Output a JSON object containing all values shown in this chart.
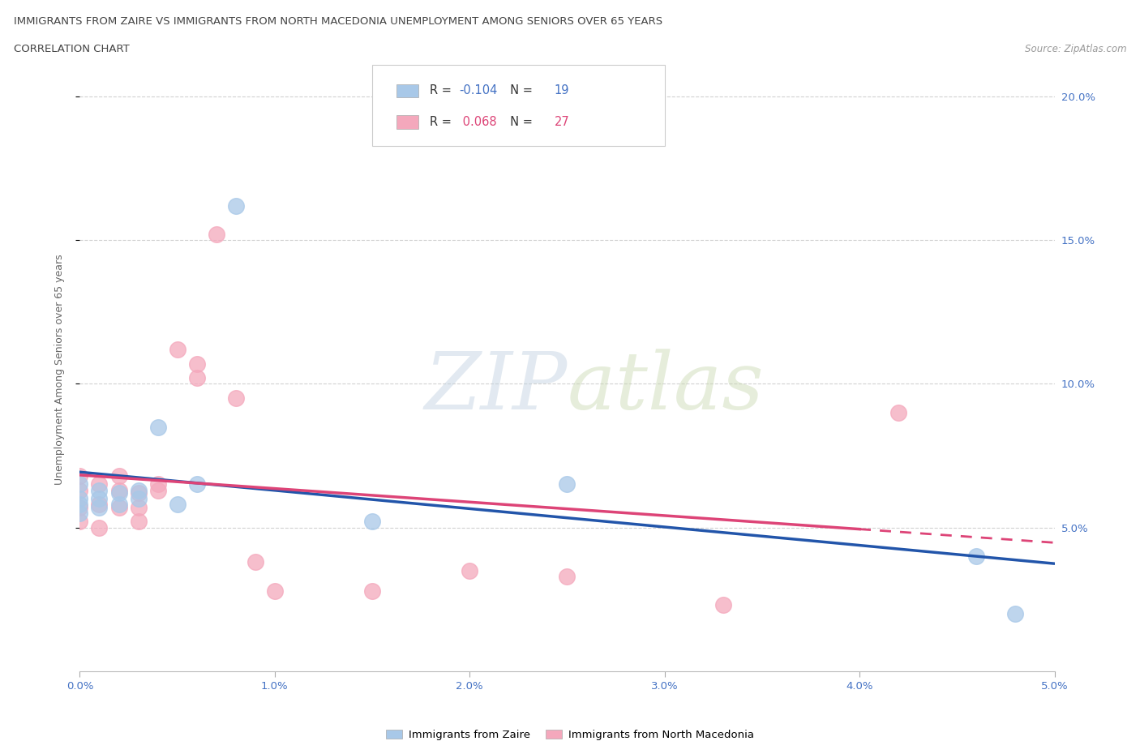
{
  "title_line1": "IMMIGRANTS FROM ZAIRE VS IMMIGRANTS FROM NORTH MACEDONIA UNEMPLOYMENT AMONG SENIORS OVER 65 YEARS",
  "title_line2": "CORRELATION CHART",
  "source": "Source: ZipAtlas.com",
  "ylabel": "Unemployment Among Seniors over 65 years",
  "xlim": [
    0.0,
    0.05
  ],
  "ylim": [
    0.0,
    0.21
  ],
  "yticks": [
    0.05,
    0.1,
    0.15,
    0.2
  ],
  "xticks": [
    0.0,
    0.01,
    0.02,
    0.03,
    0.04,
    0.05
  ],
  "zaire_R": -0.104,
  "zaire_N": 19,
  "macedonia_R": 0.068,
  "macedonia_N": 27,
  "zaire_color": "#A8C8E8",
  "macedonia_color": "#F4A8BC",
  "zaire_line_color": "#2255AA",
  "macedonia_line_color": "#DD4477",
  "zaire_points": [
    [
      0.0,
      0.065
    ],
    [
      0.0,
      0.06
    ],
    [
      0.0,
      0.058
    ],
    [
      0.0,
      0.055
    ],
    [
      0.001,
      0.063
    ],
    [
      0.001,
      0.06
    ],
    [
      0.001,
      0.057
    ],
    [
      0.002,
      0.062
    ],
    [
      0.002,
      0.058
    ],
    [
      0.003,
      0.063
    ],
    [
      0.003,
      0.06
    ],
    [
      0.004,
      0.085
    ],
    [
      0.005,
      0.058
    ],
    [
      0.006,
      0.065
    ],
    [
      0.008,
      0.162
    ],
    [
      0.015,
      0.052
    ],
    [
      0.025,
      0.065
    ],
    [
      0.046,
      0.04
    ],
    [
      0.048,
      0.02
    ]
  ],
  "macedonia_points": [
    [
      0.0,
      0.068
    ],
    [
      0.0,
      0.063
    ],
    [
      0.0,
      0.057
    ],
    [
      0.0,
      0.052
    ],
    [
      0.001,
      0.065
    ],
    [
      0.001,
      0.058
    ],
    [
      0.001,
      0.05
    ],
    [
      0.002,
      0.068
    ],
    [
      0.002,
      0.063
    ],
    [
      0.002,
      0.057
    ],
    [
      0.003,
      0.062
    ],
    [
      0.003,
      0.057
    ],
    [
      0.003,
      0.052
    ],
    [
      0.004,
      0.065
    ],
    [
      0.004,
      0.063
    ],
    [
      0.005,
      0.112
    ],
    [
      0.006,
      0.107
    ],
    [
      0.006,
      0.102
    ],
    [
      0.007,
      0.152
    ],
    [
      0.008,
      0.095
    ],
    [
      0.009,
      0.038
    ],
    [
      0.01,
      0.028
    ],
    [
      0.015,
      0.028
    ],
    [
      0.02,
      0.035
    ],
    [
      0.025,
      0.033
    ],
    [
      0.033,
      0.023
    ],
    [
      0.042,
      0.09
    ]
  ]
}
